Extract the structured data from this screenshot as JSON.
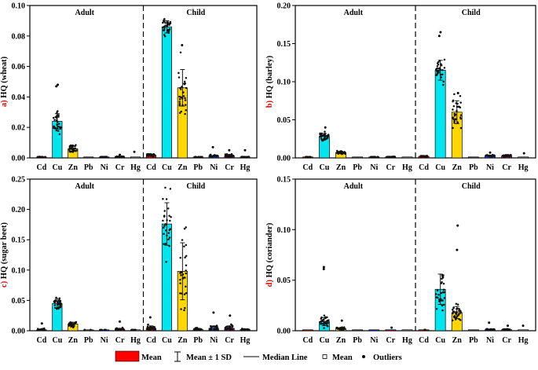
{
  "chart_data": [
    {
      "type": "bar",
      "panel_letter": "a)",
      "ylabel": "HQ (wheat)",
      "ylim": [
        0,
        0.1
      ],
      "yticks": [
        0.0,
        0.02,
        0.04,
        0.06,
        0.08,
        0.1
      ],
      "ytick_labels": [
        "0.00",
        "0.02",
        "0.04",
        "0.06",
        "0.08",
        "0.10"
      ],
      "group_labels": [
        "Adult",
        "Child"
      ],
      "categories": [
        "Cd",
        "Cu",
        "Zn",
        "Pb",
        "Ni",
        "Cr",
        "Hg",
        "Cd",
        "Cu",
        "Zn",
        "Pb",
        "Ni",
        "Cr",
        "Hg"
      ],
      "series": [
        {
          "name": "Mean",
          "values": [
            0.0005,
            0.024,
            0.006,
            0.0003,
            0.0005,
            0.0007,
            0.0003,
            0.0018,
            0.086,
            0.046,
            0.0005,
            0.0014,
            0.0014,
            0.0005
          ]
        }
      ],
      "sd": [
        0.0002,
        0.005,
        0.0016,
        0.0001,
        0.0002,
        0.0003,
        0.0001,
        0.0006,
        0.004,
        0.012,
        0.0002,
        0.0005,
        0.0008,
        0.0002
      ],
      "outliers_high": [
        null,
        [
          0.047,
          0.048
        ],
        [
          0.008
        ],
        null,
        null,
        [
          0.002
        ],
        [
          0.004
        ],
        null,
        null,
        [
          0.074
        ],
        null,
        [
          0.007
        ],
        [
          0.005
        ],
        [
          0.005
        ]
      ]
    },
    {
      "type": "bar",
      "panel_letter": "b)",
      "ylabel": "HQ (barley)",
      "ylim": [
        0,
        0.2
      ],
      "yticks": [
        0.0,
        0.05,
        0.1,
        0.15,
        0.2
      ],
      "ytick_labels": [
        "0.00",
        "0.05",
        "0.10",
        "0.15",
        "0.20"
      ],
      "group_labels": [
        "Adult",
        "Child"
      ],
      "categories": [
        "Cd",
        "Cu",
        "Zn",
        "Pb",
        "Ni",
        "Cr",
        "Hg",
        "Cd",
        "Cu",
        "Zn",
        "Pb",
        "Ni",
        "Cr",
        "Hg"
      ],
      "series": [
        {
          "name": "Mean",
          "values": [
            0.001,
            0.028,
            0.007,
            0.0005,
            0.001,
            0.0012,
            0.0005,
            0.002,
            0.115,
            0.06,
            0.0006,
            0.003,
            0.0025,
            0.0006
          ]
        }
      ],
      "sd": [
        0.0003,
        0.004,
        0.0015,
        0.0002,
        0.0003,
        0.0004,
        0.0002,
        0.0005,
        0.013,
        0.015,
        0.0002,
        0.001,
        0.001,
        0.0002
      ],
      "outliers_high": [
        null,
        [
          0.04
        ],
        null,
        null,
        null,
        null,
        null,
        null,
        [
          0.16,
          0.165
        ],
        [
          0.085
        ],
        null,
        [
          0.007
        ],
        null,
        [
          0.006
        ]
      ]
    },
    {
      "type": "bar",
      "panel_letter": "c)",
      "ylabel": "HQ (sugar beet)",
      "ylim": [
        0,
        0.25
      ],
      "yticks": [
        0.0,
        0.05,
        0.1,
        0.15,
        0.2,
        0.25
      ],
      "ytick_labels": [
        "0.00",
        "0.05",
        "0.10",
        "0.15",
        "0.20",
        "0.25"
      ],
      "group_labels": [
        "Adult",
        "Child"
      ],
      "categories": [
        "Cd",
        "Cu",
        "Zn",
        "Pb",
        "Ni",
        "Cr",
        "Hg",
        "Cd",
        "Cu",
        "Zn",
        "Pb",
        "Ni",
        "Cr",
        "Hg"
      ],
      "series": [
        {
          "name": "Mean",
          "values": [
            0.001,
            0.045,
            0.011,
            0.0008,
            0.001,
            0.002,
            0.001,
            0.004,
            0.176,
            0.098,
            0.002,
            0.004,
            0.004,
            0.002
          ]
        }
      ],
      "sd": [
        0.002,
        0.008,
        0.003,
        0.0004,
        0.0005,
        0.002,
        0.0005,
        0.004,
        0.035,
        0.047,
        0.002,
        0.004,
        0.004,
        0.001
      ],
      "outliers_high": [
        [
          0.012
        ],
        null,
        null,
        null,
        null,
        [
          0.015
        ],
        null,
        [
          0.022
        ],
        null,
        null,
        null,
        [
          0.03
        ],
        [
          0.025
        ],
        null
      ]
    },
    {
      "type": "bar",
      "panel_letter": "d)",
      "ylabel": "HQ (coriander)",
      "ylim": [
        0,
        0.15
      ],
      "yticks": [
        0.0,
        0.05,
        0.1,
        0.15
      ],
      "ytick_labels": [
        "0.00",
        "0.05",
        "0.10",
        "0.15"
      ],
      "group_labels": [
        "Adult",
        "Child"
      ],
      "categories": [
        "Cd",
        "Cu",
        "Zn",
        "Pb",
        "Ni",
        "Cr",
        "Hg",
        "Cd",
        "Cu",
        "Zn",
        "Pb",
        "Ni",
        "Cr",
        "Hg"
      ],
      "series": [
        {
          "name": "Mean",
          "values": [
            0.0002,
            0.009,
            0.002,
            0.0001,
            0.0003,
            0.0003,
            0.0001,
            0.0006,
            0.041,
            0.018,
            0.0003,
            0.001,
            0.001,
            0.0003
          ]
        }
      ],
      "sd": [
        0.0001,
        0.004,
        0.001,
        0.0001,
        0.0002,
        0.0002,
        0.0001,
        0.0002,
        0.015,
        0.006,
        0.0001,
        0.0005,
        0.0005,
        0.0001
      ],
      "outliers_high": [
        null,
        [
          0.061,
          0.063
        ],
        [
          0.01
        ],
        null,
        null,
        [
          0.003
        ],
        null,
        null,
        null,
        [
          0.08,
          0.104
        ],
        null,
        [
          0.008
        ],
        [
          0.005
        ],
        [
          0.005
        ]
      ]
    }
  ],
  "colors": {
    "Cd": "#ff0000",
    "Cu": "#00e5ee",
    "Zn": "#ffd700",
    "Pb": "#666666",
    "Ni": "#1e3cff",
    "Cr": "#c71585",
    "Hg": "#999999",
    "legend_mean": "#ff0000"
  },
  "legend": {
    "mean_box": "Mean",
    "sd": "Mean ± 1 SD",
    "median": "Median Line",
    "mean_marker": "Mean",
    "outliers": "Outliers"
  }
}
